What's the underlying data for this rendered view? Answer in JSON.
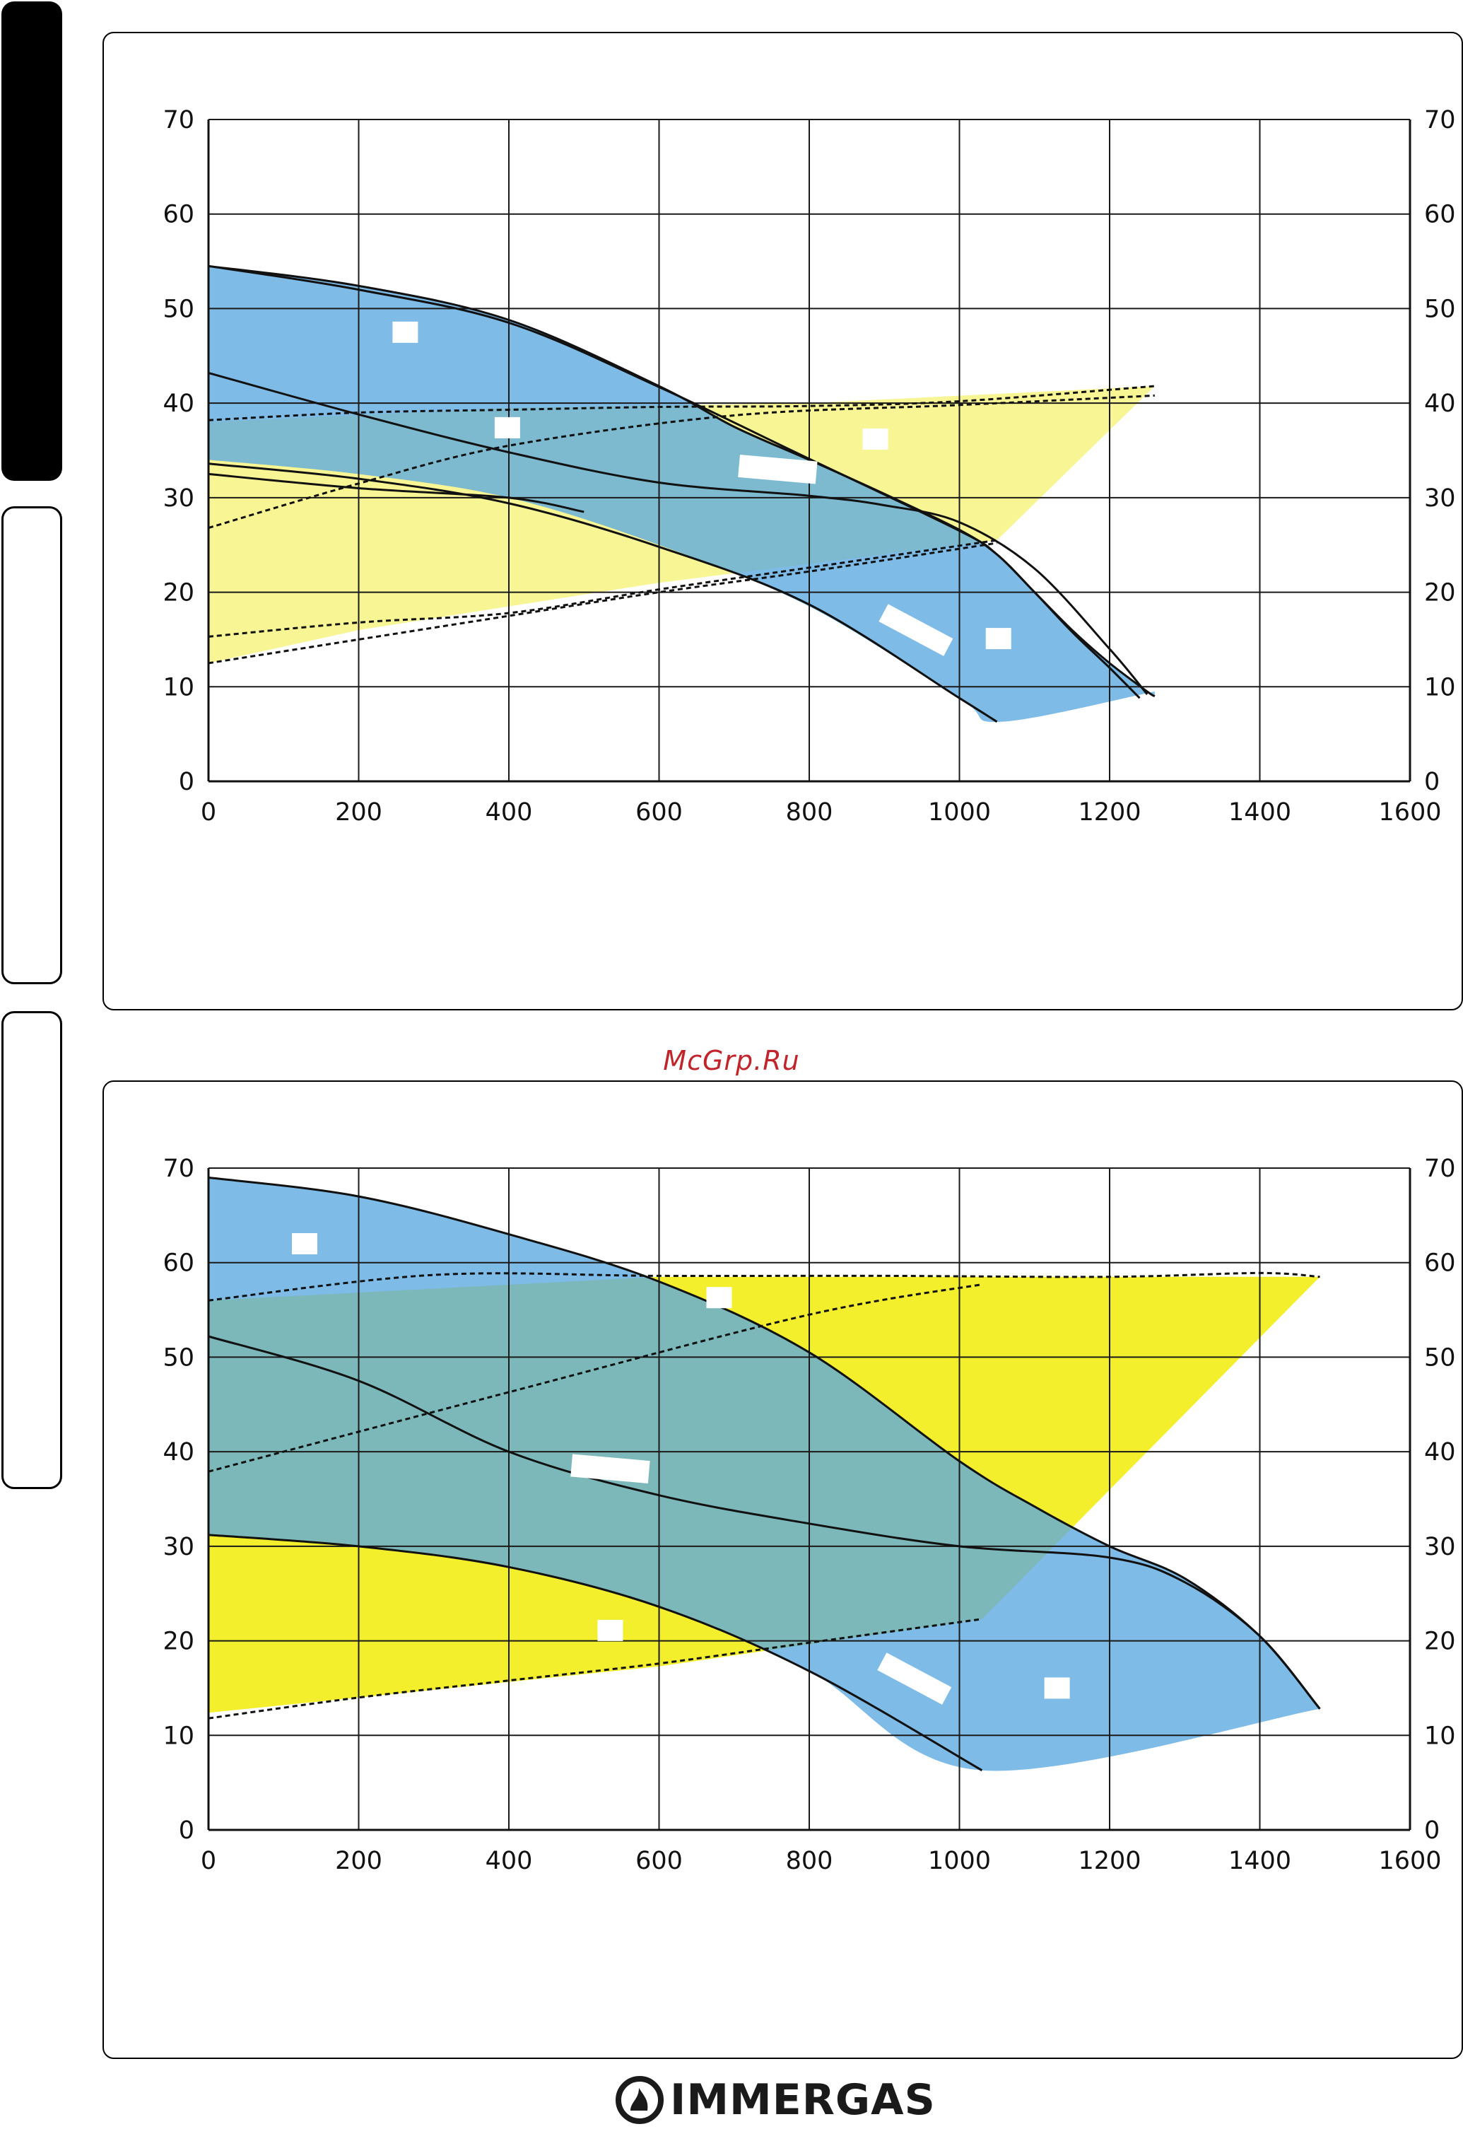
{
  "watermark": "McGrp.Ru",
  "brand": {
    "name": "IMMERGAS",
    "logo_icon": "immergas-flame-logo-icon"
  },
  "colors": {
    "blue_fill": "#5aa8e0",
    "yellow_fill_light": "#f8f48e",
    "yellow_fill_bright": "#f2ee22",
    "overlap_light": "#7db7c6",
    "overlap_bright": "#7eb9a8",
    "grid": "#1a1a1a",
    "label_box": "#ffffff"
  },
  "chart_data": [
    {
      "type": "area",
      "title": "",
      "xlabel": "",
      "ylabel": "",
      "xlim": [
        0,
        1600
      ],
      "ylim": [
        0,
        70
      ],
      "x_ticks": [
        0,
        200,
        400,
        600,
        800,
        1000,
        1200,
        1400,
        1600
      ],
      "y_ticks": [
        0,
        10,
        20,
        30,
        40,
        50,
        60,
        70
      ],
      "grid": true,
      "yellow_style": "light",
      "series": [
        {
          "role": "blue-envelope-upper",
          "x": [
            0,
            200,
            400,
            600,
            700,
            800,
            900,
            1000,
            1050,
            1100,
            1150,
            1200,
            1250,
            1260
          ],
          "y": [
            54.5,
            52.4,
            48.8,
            41.8,
            37.5,
            34,
            30.4,
            26.6,
            24,
            20,
            16,
            12.5,
            9.5,
            9
          ]
        },
        {
          "role": "blue-envelope-lower",
          "x": [
            0,
            200,
            400,
            600,
            800,
            1000,
            1055,
            1260
          ],
          "y": [
            34,
            32.5,
            30,
            25,
            18.5,
            8.8,
            6.3,
            9.5
          ]
        },
        {
          "role": "pump-curve-mid",
          "x": [
            0,
            200,
            400,
            600,
            800,
            900,
            1000,
            1100,
            1200,
            1250
          ],
          "y": [
            43.2,
            38.8,
            34.8,
            31.6,
            30.2,
            29.2,
            27.4,
            22.5,
            14,
            9.2
          ]
        },
        {
          "role": "pump-curve-upper-line",
          "x": [
            0,
            200,
            400,
            600,
            800,
            1000,
            1050,
            1100,
            1150,
            1200,
            1240
          ],
          "y": [
            54.5,
            52,
            48.5,
            41.7,
            34.1,
            26.5,
            24,
            20,
            15.8,
            12,
            8.8
          ]
        },
        {
          "role": "pump-curve-low",
          "x": [
            0,
            200,
            400,
            600,
            800,
            1000,
            1050
          ],
          "y": [
            33.6,
            32,
            29.4,
            24.8,
            18.7,
            8.8,
            6.3
          ]
        },
        {
          "role": "pump-curve-low2",
          "x": [
            0,
            200,
            400,
            500
          ],
          "y": [
            32.5,
            31,
            30,
            28.5
          ]
        },
        {
          "role": "yellow-area",
          "x": [
            0,
            400,
            800,
            1260,
            1050,
            600,
            200,
            0
          ],
          "y": [
            38,
            39.5,
            40,
            41.8,
            25.5,
            21,
            16,
            12.5
          ]
        },
        {
          "role": "system-curve-dashed",
          "x": [
            0,
            200,
            400,
            600,
            800,
            1000,
            1260
          ],
          "y": [
            38.2,
            39,
            39.3,
            39.6,
            39.7,
            40.2,
            41.8
          ]
        },
        {
          "role": "system-curve-dashed",
          "x": [
            0,
            200,
            400,
            600,
            800,
            1050
          ],
          "y": [
            15.3,
            16.8,
            17.8,
            20.3,
            22.6,
            25.5
          ]
        },
        {
          "role": "system-curve-dashed",
          "x": [
            0,
            200,
            400,
            600,
            800,
            1050
          ],
          "y": [
            12.5,
            15.0,
            17.5,
            20,
            22.2,
            25.2
          ]
        },
        {
          "role": "system-curve-dashed",
          "x": [
            0,
            200,
            400,
            700,
            1000,
            1260
          ],
          "y": [
            26.8,
            31.5,
            35.5,
            38.7,
            39.8,
            40.8
          ]
        }
      ],
      "label_boxes": [
        {
          "x": 262,
          "y": 47.5,
          "shape": "square"
        },
        {
          "x": 398,
          "y": 37.4,
          "shape": "square"
        },
        {
          "x": 888,
          "y": 36.2,
          "shape": "square"
        },
        {
          "x": 758,
          "y": 33.0,
          "shape": "wide"
        },
        {
          "x": 1052,
          "y": 15.1,
          "shape": "square"
        },
        {
          "x": 942,
          "y": 16.0,
          "shape": "slanted"
        }
      ]
    },
    {
      "type": "area",
      "title": "",
      "xlabel": "",
      "ylabel": "",
      "xlim": [
        0,
        1600
      ],
      "ylim": [
        0,
        70
      ],
      "x_ticks": [
        0,
        200,
        400,
        600,
        800,
        1000,
        1200,
        1400,
        1600
      ],
      "y_ticks": [
        0,
        10,
        20,
        30,
        40,
        50,
        60,
        70
      ],
      "grid": true,
      "yellow_style": "bright",
      "series": [
        {
          "role": "blue-envelope-upper",
          "x": [
            0,
            200,
            400,
            600,
            800,
            1000,
            1100,
            1200,
            1300,
            1400,
            1480
          ],
          "y": [
            69,
            67,
            63,
            58,
            50.5,
            39,
            34.2,
            30,
            26.6,
            20.5,
            12.8
          ]
        },
        {
          "role": "blue-envelope-lower",
          "x": [
            0,
            200,
            400,
            600,
            800,
            1030,
            1480
          ],
          "y": [
            31.2,
            30,
            27.8,
            23.6,
            16.8,
            6.3,
            12.8
          ]
        },
        {
          "role": "pump-curve-mid",
          "x": [
            0,
            200,
            400,
            600,
            800,
            1000,
            1200,
            1300,
            1400,
            1480
          ],
          "y": [
            52.2,
            47.5,
            40,
            35.4,
            32.4,
            30,
            28.8,
            26.2,
            20.5,
            12.8
          ]
        },
        {
          "role": "pump-curve-low",
          "x": [
            0,
            200,
            400,
            600,
            800,
            1030
          ],
          "y": [
            31.2,
            30,
            27.8,
            23.6,
            16.8,
            6.3
          ]
        },
        {
          "role": "yellow-area",
          "x": [
            0,
            600,
            1000,
            1480,
            1030,
            600,
            200,
            0
          ],
          "y": [
            56,
            58.5,
            58.5,
            58.5,
            22.3,
            17.3,
            14,
            12.4
          ]
        },
        {
          "role": "system-curve-dashed",
          "x": [
            0,
            300,
            600,
            900,
            1200,
            1400,
            1480
          ],
          "y": [
            56,
            58.7,
            58.6,
            58.6,
            58.5,
            58.9,
            58.5
          ]
        },
        {
          "role": "system-curve-dashed",
          "x": [
            0,
            400,
            800,
            1030
          ],
          "y": [
            37.9,
            46.3,
            54.5,
            57.7
          ]
        },
        {
          "role": "system-curve-dashed",
          "x": [
            0,
            200,
            400,
            600,
            800,
            1030
          ],
          "y": [
            11.8,
            14.0,
            15.8,
            17.6,
            19.8,
            22.3
          ]
        }
      ],
      "label_boxes": [
        {
          "x": 128,
          "y": 62.0,
          "shape": "square"
        },
        {
          "x": 680,
          "y": 56.3,
          "shape": "square"
        },
        {
          "x": 535,
          "y": 21.1,
          "shape": "square"
        },
        {
          "x": 1130,
          "y": 15.0,
          "shape": "square"
        },
        {
          "x": 535,
          "y": 38.2,
          "shape": "wide"
        },
        {
          "x": 940,
          "y": 16.0,
          "shape": "slanted"
        }
      ]
    }
  ]
}
